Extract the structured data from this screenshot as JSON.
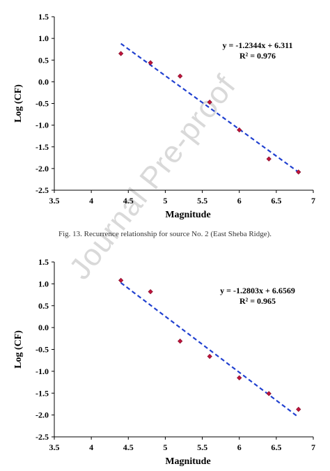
{
  "caption": "Fig. 13. Recurrence relationship for source No. 2 (East Sheba Ridge).",
  "watermark": "Journal Pre-proof",
  "colors": {
    "point": "#c0143c",
    "fit_line": "#2040d0"
  },
  "chart_data": [
    {
      "type": "scatter",
      "xlabel": "Magnitude",
      "ylabel": "Log (CF)",
      "xlim": [
        3.5,
        7
      ],
      "ylim": [
        -2.5,
        1.5
      ],
      "xticks": [
        3.5,
        4,
        4.5,
        5,
        5.5,
        6,
        6.5,
        7
      ],
      "xtick_labels": [
        "3.5",
        "4",
        "4.5",
        "5",
        "5.5",
        "6",
        "6.5",
        "7"
      ],
      "yticks": [
        1.5,
        1.0,
        0.5,
        0.0,
        -0.5,
        -1.0,
        -1.5,
        -2.0,
        -2.5
      ],
      "ytick_labels": [
        "1.5",
        "1.0",
        "0.5",
        "0.0",
        "-0.5",
        "-1.0",
        "-1.5",
        "-2.0",
        "-2.5"
      ],
      "grid": false,
      "x": [
        4.4,
        4.8,
        5.2,
        5.6,
        6.0,
        6.4,
        6.8
      ],
      "y": [
        0.65,
        0.44,
        0.13,
        -0.47,
        -1.11,
        -1.78,
        -2.08
      ],
      "fit": {
        "slope": -1.2344,
        "intercept": 6.311,
        "x_range": [
          4.4,
          6.8
        ]
      },
      "equation": "y = -1.2344x + 6.311",
      "r2": "R² = 0.976"
    },
    {
      "type": "scatter",
      "xlabel": "Magnitude",
      "ylabel": "Log (CF)",
      "xlim": [
        3.5,
        7
      ],
      "ylim": [
        -2.5,
        1.5
      ],
      "xticks": [
        3.5,
        4,
        4.5,
        5,
        5.5,
        6,
        6.5,
        7
      ],
      "xtick_labels": [
        "3.5",
        "4",
        "4.5",
        "5",
        "5.5",
        "6",
        "6.5",
        "7"
      ],
      "yticks": [
        1.5,
        1.0,
        0.5,
        0.0,
        -0.5,
        -1.0,
        -1.5,
        -2.0,
        -2.5
      ],
      "ytick_labels": [
        "1.5",
        "1.0",
        "0.5",
        "0.0",
        "-0.5",
        "-1.0",
        "-1.5",
        "-2.0",
        "-2.5"
      ],
      "grid": false,
      "x": [
        4.4,
        4.8,
        5.2,
        5.6,
        6.0,
        6.4,
        6.8
      ],
      "y": [
        1.08,
        0.82,
        -0.31,
        -0.66,
        -1.15,
        -1.51,
        -1.87
      ],
      "fit": {
        "slope": -1.2803,
        "intercept": 6.6569,
        "x_range": [
          4.4,
          6.8
        ]
      },
      "equation": "y = -1.2803x + 6.6569",
      "r2": "R² = 0.965"
    }
  ]
}
